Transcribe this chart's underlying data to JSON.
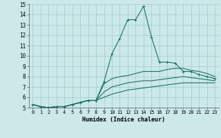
{
  "title": "",
  "xlabel": "Humidex (Indice chaleur)",
  "xlim": [
    -0.5,
    23.5
  ],
  "ylim": [
    5,
    15
  ],
  "xticks": [
    0,
    1,
    2,
    3,
    4,
    5,
    6,
    7,
    8,
    9,
    10,
    11,
    12,
    13,
    14,
    15,
    16,
    17,
    18,
    19,
    20,
    21,
    22,
    23
  ],
  "yticks": [
    5,
    6,
    7,
    8,
    9,
    10,
    11,
    12,
    13,
    14,
    15
  ],
  "bg_color": "#cce8e8",
  "grid_color": "#99cccc",
  "line_color": "#1a7060",
  "lines": [
    {
      "x": [
        0,
        1,
        2,
        3,
        4,
        5,
        6,
        7,
        8,
        9,
        10,
        11,
        12,
        13,
        14,
        15,
        16,
        17,
        18,
        19,
        20,
        21,
        22,
        23
      ],
      "y": [
        5.3,
        5.1,
        5.0,
        5.1,
        5.1,
        5.3,
        5.5,
        5.7,
        5.7,
        7.5,
        10.2,
        11.7,
        13.5,
        13.5,
        14.8,
        11.8,
        9.4,
        9.4,
        9.3,
        8.5,
        8.5,
        8.2,
        8.0,
        7.8
      ],
      "has_marker": true
    },
    {
      "x": [
        0,
        1,
        2,
        3,
        4,
        5,
        6,
        7,
        8,
        9,
        10,
        11,
        12,
        13,
        14,
        15,
        16,
        17,
        18,
        19,
        20,
        21,
        22,
        23
      ],
      "y": [
        5.3,
        5.1,
        5.0,
        5.1,
        5.1,
        5.3,
        5.5,
        5.7,
        5.7,
        7.3,
        7.8,
        8.0,
        8.1,
        8.3,
        8.5,
        8.5,
        8.5,
        8.7,
        8.8,
        8.8,
        8.6,
        8.5,
        8.3,
        8.0
      ],
      "has_marker": false
    },
    {
      "x": [
        0,
        1,
        2,
        3,
        4,
        5,
        6,
        7,
        8,
        9,
        10,
        11,
        12,
        13,
        14,
        15,
        16,
        17,
        18,
        19,
        20,
        21,
        22,
        23
      ],
      "y": [
        5.3,
        5.1,
        5.0,
        5.1,
        5.1,
        5.3,
        5.5,
        5.7,
        5.7,
        6.5,
        7.0,
        7.2,
        7.4,
        7.5,
        7.6,
        7.6,
        7.7,
        7.8,
        7.9,
        8.0,
        7.9,
        7.8,
        7.7,
        7.6
      ],
      "has_marker": false
    },
    {
      "x": [
        0,
        1,
        2,
        3,
        4,
        5,
        6,
        7,
        8,
        9,
        10,
        11,
        12,
        13,
        14,
        15,
        16,
        17,
        18,
        19,
        20,
        21,
        22,
        23
      ],
      "y": [
        5.3,
        5.1,
        5.0,
        5.1,
        5.1,
        5.3,
        5.5,
        5.7,
        5.7,
        6.0,
        6.3,
        6.5,
        6.7,
        6.8,
        6.9,
        7.0,
        7.1,
        7.2,
        7.3,
        7.4,
        7.4,
        7.4,
        7.4,
        7.4
      ],
      "has_marker": false
    }
  ]
}
